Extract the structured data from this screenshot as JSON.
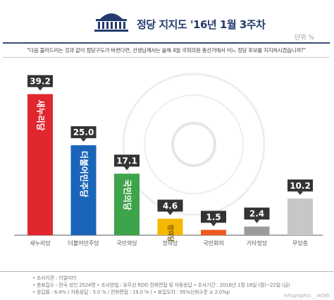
{
  "header": {
    "title": "정당 지지도 '16년 1월 3주차",
    "unit": "단위 %",
    "question": "\"다음 불러드리는 것과 같이 정당구도가 바뀐다면, 선생님께서는 올해 4월 국회의원 총선거에서 어느 정당 후보를 지지하시겠습니까?\""
  },
  "chart_data": {
    "type": "bar",
    "categories": [
      "새누리당",
      "더불어민주당",
      "국민의당",
      "정의당",
      "국민회의",
      "기타정당",
      "무당층"
    ],
    "values": [
      39.2,
      25.0,
      17.1,
      4.6,
      1.5,
      2.4,
      10.2
    ],
    "value_labels": [
      "39.2",
      "25.0",
      "17.1",
      "4.6",
      "1.5",
      "2.4",
      "10.2"
    ],
    "bar_text": [
      "새누리당",
      "더불어민주당",
      "국민의당",
      "정의당",
      "",
      "",
      ""
    ],
    "colors": [
      "#e0262e",
      "#1a65b9",
      "#3ea34a",
      "#f5b800",
      "#ee5a1f",
      "#9b9b9b",
      "#c7c7c7"
    ],
    "ylim": [
      0,
      45
    ],
    "title": "",
    "xlabel": "",
    "ylabel": ""
  },
  "footer": {
    "line1": "• 조사기관 : 리얼미터",
    "line2": "• 총표집수 : 전국 성인 2524명  • 조사방법 : 유무선 RDD 전화면접 및 자동응답  • 조사기간 : 2016년 1월 18일 (월)~22일 (금)",
    "line3": "• 응답률 : 6.4% ( 자동응답 : 5.0 % / 전화면접 : 19.0 % )  • 표집오차 : 95%신뢰수준 ± 2.0%p",
    "credit": "infographic _ IeDEI"
  }
}
